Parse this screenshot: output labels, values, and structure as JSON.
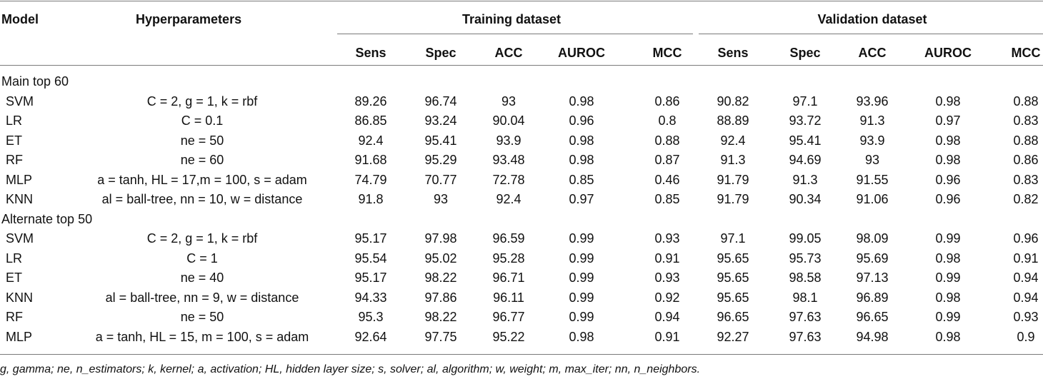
{
  "header": {
    "model": "Model",
    "hyperparameters": "Hyperparameters",
    "training_group": "Training dataset",
    "validation_group": "Validation dataset",
    "metrics": [
      "Sens",
      "Spec",
      "ACC",
      "AUROC",
      "MCC",
      "Sens",
      "Spec",
      "ACC",
      "AUROC",
      "MCC"
    ]
  },
  "sections": [
    {
      "title": "Main top 60",
      "rows": [
        {
          "model": "SVM",
          "hyper": "C = 2, g = 1, k = rbf",
          "values": [
            "89.26",
            "96.74",
            "93",
            "0.98",
            "0.86",
            "90.82",
            "97.1",
            "93.96",
            "0.98",
            "0.88"
          ]
        },
        {
          "model": "LR",
          "hyper": "C = 0.1",
          "values": [
            "86.85",
            "93.24",
            "90.04",
            "0.96",
            "0.8",
            "88.89",
            "93.72",
            "91.3",
            "0.97",
            "0.83"
          ]
        },
        {
          "model": "ET",
          "hyper": "ne = 50",
          "values": [
            "92.4",
            "95.41",
            "93.9",
            "0.98",
            "0.88",
            "92.4",
            "95.41",
            "93.9",
            "0.98",
            "0.88"
          ]
        },
        {
          "model": "RF",
          "hyper": "ne = 60",
          "values": [
            "91.68",
            "95.29",
            "93.48",
            "0.98",
            "0.87",
            "91.3",
            "94.69",
            "93",
            "0.98",
            "0.86"
          ]
        },
        {
          "model": "MLP",
          "hyper": "a = tanh, HL = 17,m = 100, s = adam",
          "values": [
            "74.79",
            "70.77",
            "72.78",
            "0.85",
            "0.46",
            "91.79",
            "91.3",
            "91.55",
            "0.96",
            "0.83"
          ]
        },
        {
          "model": "KNN",
          "hyper": "al = ball-tree, nn = 10, w = distance",
          "values": [
            "91.8",
            "93",
            "92.4",
            "0.97",
            "0.85",
            "91.79",
            "90.34",
            "91.06",
            "0.96",
            "0.82"
          ]
        }
      ]
    },
    {
      "title": "Alternate top 50",
      "rows": [
        {
          "model": "SVM",
          "hyper": "C = 2, g = 1, k = rbf",
          "values": [
            "95.17",
            "97.98",
            "96.59",
            "0.99",
            "0.93",
            "97.1",
            "99.05",
            "98.09",
            "0.99",
            "0.96"
          ]
        },
        {
          "model": "LR",
          "hyper": "C = 1",
          "values": [
            "95.54",
            "95.02",
            "95.28",
            "0.99",
            "0.91",
            "95.65",
            "95.73",
            "95.69",
            "0.98",
            "0.91"
          ]
        },
        {
          "model": "ET",
          "hyper": "ne = 40",
          "values": [
            "95.17",
            "98.22",
            "96.71",
            "0.99",
            "0.93",
            "95.65",
            "98.58",
            "97.13",
            "0.99",
            "0.94"
          ]
        },
        {
          "model": "KNN",
          "hyper": "al = ball-tree, nn = 9, w = distance",
          "values": [
            "94.33",
            "97.86",
            "96.11",
            "0.99",
            "0.92",
            "95.65",
            "98.1",
            "96.89",
            "0.98",
            "0.94"
          ]
        },
        {
          "model": "RF",
          "hyper": "ne = 50",
          "values": [
            "95.3",
            "98.22",
            "96.77",
            "0.99",
            "0.94",
            "96.65",
            "97.63",
            "96.65",
            "0.99",
            "0.93"
          ]
        },
        {
          "model": "MLP",
          "hyper": "a = tanh, HL = 15, m = 100, s = adam",
          "values": [
            "92.64",
            "97.75",
            "95.22",
            "0.98",
            "0.91",
            "92.27",
            "97.63",
            "94.98",
            "0.98",
            "0.9"
          ]
        }
      ]
    }
  ],
  "footnote": "g, gamma; ne, n_estimators; k, kernel; a, activation; HL, hidden layer size; s, solver; al, algorithm; w, weight; m, max_iter; nn, n_neighbors."
}
